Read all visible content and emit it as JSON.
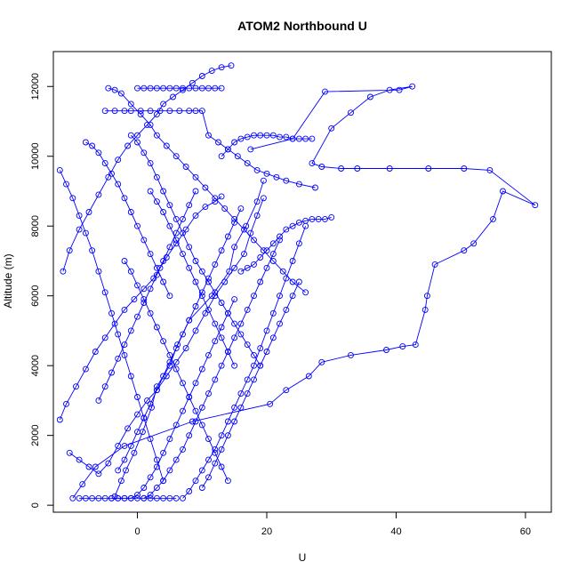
{
  "chart_data": {
    "type": "line",
    "title": "ATOM2 Northbound U",
    "xlabel": "U",
    "ylabel": "Altitude (m)",
    "xlim": [
      -13,
      64
    ],
    "ylim": [
      -200,
      13000
    ],
    "xticks": [
      0,
      20,
      40,
      60
    ],
    "yticks": [
      0,
      2000,
      4000,
      6000,
      8000,
      10000,
      12000
    ],
    "grid": false,
    "legend": "none",
    "color": "#0000ff",
    "marker": "open-circle",
    "series": [
      {
        "x": [
          -3.5,
          -2.5,
          -1.8,
          -0.5,
          0.8,
          2.2,
          3.0,
          5.0,
          6.2,
          8.0,
          11.5,
          14.2,
          15.0,
          16.8,
          18.5,
          19.5
        ],
        "y": [
          250,
          700,
          1000,
          1500,
          2100,
          2800,
          3400,
          4000,
          4600,
          5300,
          6000,
          6700,
          7400,
          8000,
          8700,
          9300
        ]
      },
      {
        "x": [
          -10.0,
          -8.5,
          -6.5,
          -2.0,
          8.5,
          20.5,
          23.0,
          26.5,
          28.5,
          33.0,
          38.5,
          41.0,
          43.0,
          44.5,
          44.8,
          46.0,
          50.5,
          52.0,
          55.0,
          56.5,
          61.5,
          54.5,
          50.5,
          45.0,
          39.0,
          34.0,
          31.5,
          28.5,
          27.0,
          30.0,
          33.0,
          36.0,
          39.0,
          42.5,
          40.5,
          29.0,
          24.0,
          17.5
        ],
        "y": [
          200,
          600,
          1100,
          1700,
          2400,
          2900,
          3300,
          3700,
          4100,
          4300,
          4450,
          4550,
          4600,
          5600,
          6000,
          6900,
          7300,
          7500,
          8200,
          9000,
          8600,
          9600,
          9650,
          9650,
          9650,
          9650,
          9650,
          9700,
          9800,
          10800,
          11250,
          11700,
          11900,
          12000,
          11900,
          11850,
          10500,
          10200
        ]
      },
      {
        "x": [
          -12.0,
          -11.0,
          -9.5,
          -8.0,
          -6.5,
          -5.0,
          -3.5,
          -2.0,
          -0.5,
          1.0,
          2.5,
          3.5,
          4.5,
          6.0,
          7.5,
          9.0,
          10.5,
          12.0,
          13.0
        ],
        "y": [
          2450,
          2900,
          3400,
          3900,
          4400,
          4800,
          5200,
          5600,
          5900,
          6200,
          6500,
          6800,
          7100,
          7500,
          7900,
          8300,
          8550,
          8700,
          8850
        ]
      },
      {
        "x": [
          -10.5,
          -9.0,
          -7.5,
          -6.0,
          -4.5,
          -3.0,
          -1.5,
          0.0,
          1.5,
          3.0,
          4.5,
          6.0,
          7.5,
          9.0,
          10.5,
          12.0,
          13.5,
          15.0,
          16.5,
          17.5,
          18.5,
          19.5
        ],
        "y": [
          1500,
          1300,
          1100,
          900,
          1200,
          1700,
          2200,
          2600,
          3000,
          3300,
          3700,
          4100,
          4500,
          5000,
          5500,
          6000,
          6400,
          6800,
          7200,
          7800,
          8300,
          8800
        ]
      },
      {
        "x": [
          -11.5,
          -10.5,
          -9.0,
          -7.5,
          -6.0,
          -4.5,
          -3.0,
          -1.5,
          0.0,
          1.5,
          3.0,
          4.0,
          5.5,
          7.0,
          8.5,
          10.0,
          11.5,
          13.0,
          14.5
        ],
        "y": [
          6700,
          7300,
          7900,
          8400,
          8900,
          9400,
          9900,
          10300,
          10600,
          10900,
          11200,
          11500,
          11700,
          11900,
          12100,
          12300,
          12450,
          12550,
          12600
        ]
      },
      {
        "x": [
          -5.0,
          -3.5,
          -2.0,
          -1.0,
          0.5,
          2.0,
          3.5,
          5.0,
          6.5,
          8.0,
          9.0,
          10.0,
          11.0,
          12.5,
          14.0,
          15.5,
          17.0,
          18.5,
          20.0,
          21.5,
          23.0,
          25.0,
          27.5
        ],
        "y": [
          11300,
          11300,
          11300,
          11300,
          11300,
          11300,
          11300,
          11300,
          11300,
          11300,
          11300,
          11300,
          10600,
          10400,
          10200,
          10000,
          9800,
          9600,
          9500,
          9400,
          9300,
          9200,
          9100
        ]
      },
      {
        "x": [
          -4.5,
          -3.5,
          -2.5,
          -1.0,
          0.5,
          2.0,
          3.0,
          4.5,
          6.0,
          7.5,
          9.0,
          10.5,
          12.0,
          13.5,
          15.0,
          16.5,
          18.0,
          19.5,
          21.0,
          22.5,
          24.0,
          26.0
        ],
        "y": [
          11950,
          11900,
          11800,
          11500,
          11200,
          10900,
          10600,
          10300,
          10000,
          9700,
          9400,
          9100,
          8800,
          8500,
          8200,
          7900,
          7600,
          7300,
          7000,
          6700,
          6400,
          6100
        ]
      },
      {
        "x": [
          -1.0,
          0.0,
          1.0,
          2.0,
          3.0,
          4.0,
          5.0,
          6.0,
          7.0,
          8.0,
          9.0,
          10.0,
          11.0,
          12.0,
          13.0,
          14.0,
          15.0,
          16.0,
          17.0,
          18.0,
          19.0
        ],
        "y": [
          10600,
          10400,
          10100,
          9800,
          9400,
          9000,
          8600,
          8200,
          7800,
          7400,
          7000,
          6700,
          6400,
          6100,
          5800,
          5500,
          5200,
          4900,
          4600,
          4300,
          4000
        ]
      },
      {
        "x": [
          -12.0,
          -11.0,
          -10.0,
          -9.0,
          -8.0,
          -7.0,
          -6.0,
          -5.0,
          -4.0,
          -3.0,
          -2.0,
          -1.0,
          0.0,
          1.0,
          2.0,
          3.0,
          4.0
        ],
        "y": [
          9600,
          9200,
          8800,
          8300,
          7800,
          7300,
          6700,
          6100,
          5500,
          4900,
          4300,
          3700,
          3100,
          2500,
          1900,
          1300,
          700
        ]
      },
      {
        "x": [
          -4.0,
          -3.0,
          -2.0,
          -1.0,
          0.0,
          1.0,
          2.0,
          3.0,
          4.0,
          5.0,
          6.0,
          7.0,
          8.0,
          9.0,
          10.0,
          11.0,
          12.0,
          13.0,
          14.0,
          15.0
        ],
        "y": [
          200,
          200,
          200,
          200,
          300,
          500,
          800,
          1100,
          1500,
          1900,
          2300,
          2700,
          3100,
          3500,
          3900,
          4300,
          4700,
          5100,
          5500,
          5900
        ]
      },
      {
        "x": [
          1.0,
          2.0,
          3.0,
          4.0,
          5.0,
          6.0,
          7.0,
          8.0,
          9.0,
          10.0,
          11.0,
          12.0,
          13.0,
          14.0,
          15.0,
          16.0,
          17.0,
          18.0,
          19.0,
          20.0,
          21.0,
          22.0
        ],
        "y": [
          200,
          300,
          500,
          700,
          1000,
          1300,
          1600,
          2000,
          2400,
          2800,
          3200,
          3600,
          4000,
          4400,
          4800,
          5200,
          5600,
          6000,
          6400,
          6800,
          7200,
          7600
        ]
      },
      {
        "x": [
          7.0,
          8.0,
          9.0,
          10.0,
          11.0,
          12.0,
          13.0,
          14.0,
          15.0,
          16.0,
          17.0,
          18.0,
          19.0,
          20.0,
          21.0,
          22.0,
          23.0,
          24.0,
          25.0,
          26.0
        ],
        "y": [
          200,
          400,
          700,
          1000,
          1300,
          1600,
          2000,
          2400,
          2800,
          3200,
          3600,
          4000,
          4500,
          5000,
          5500,
          6000,
          6500,
          7000,
          7500,
          8000
        ]
      },
      {
        "x": [
          -3.0,
          -2.0,
          -1.0,
          0.0,
          1.0,
          2.0,
          3.0,
          4.0,
          5.0,
          6.0,
          7.0,
          8.0,
          9.0,
          10.0,
          11.0,
          12.0,
          13.0,
          14.0,
          15.0,
          16.0
        ],
        "y": [
          1000,
          1300,
          1700,
          2100,
          2500,
          2900,
          3300,
          3700,
          4100,
          4500,
          4900,
          5300,
          5700,
          6100,
          6500,
          6900,
          7300,
          7700,
          8100,
          8500
        ]
      },
      {
        "x": [
          -6.0,
          -5.0,
          -4.0,
          -3.0,
          -2.0,
          -1.0,
          0.0,
          1.0,
          2.0,
          3.0,
          4.0,
          5.0,
          6.0,
          7.0,
          8.0,
          9.0
        ],
        "y": [
          3000,
          3400,
          3800,
          4200,
          4600,
          5000,
          5400,
          5800,
          6200,
          6600,
          7000,
          7400,
          7800,
          8200,
          8600,
          9000
        ]
      },
      {
        "x": [
          16.0,
          17.0,
          18.0,
          19.0,
          20.0,
          21.0,
          22.0,
          23.0,
          24.0,
          25.0,
          26.0,
          27.0,
          28.0,
          29.0,
          30.0
        ],
        "y": [
          6700,
          6800,
          6900,
          7100,
          7300,
          7500,
          7700,
          7900,
          8000,
          8100,
          8150,
          8200,
          8200,
          8200,
          8250
        ]
      },
      {
        "x": [
          13.0,
          14.0,
          15.0,
          16.0,
          17.0,
          18.0,
          19.0,
          20.0,
          21.0,
          22.0,
          23.0,
          24.0,
          25.0,
          26.0,
          27.0
        ],
        "y": [
          10000,
          10200,
          10400,
          10500,
          10550,
          10600,
          10600,
          10600,
          10600,
          10550,
          10550,
          10500,
          10500,
          10500,
          10500
        ]
      },
      {
        "x": [
          0.0,
          1.0,
          2.0,
          3.0,
          4.0,
          5.0,
          6.0,
          7.0,
          8.0,
          9.0,
          10.0,
          11.0,
          12.0,
          13.0
        ],
        "y": [
          11950,
          11950,
          11950,
          11950,
          11950,
          11950,
          11950,
          11950,
          11950,
          11950,
          11950,
          11950,
          11950,
          11950
        ]
      },
      {
        "x": [
          -8.0,
          -7.0,
          -6.0,
          -5.0,
          -4.0,
          -3.0,
          -2.0,
          -1.0,
          0.0,
          1.0,
          2.0,
          3.0,
          4.0,
          5.0
        ],
        "y": [
          10400,
          10300,
          10100,
          9800,
          9500,
          9200,
          8800,
          8400,
          8000,
          7600,
          7200,
          6800,
          6400,
          6000
        ]
      },
      {
        "x": [
          -9.0,
          -8.0,
          -7.0,
          -6.0,
          -5.0,
          -4.0,
          -3.0,
          -2.0,
          -1.0,
          0.0,
          1.0,
          2.0,
          3.0,
          4.0,
          5.0,
          6.0
        ],
        "y": [
          200,
          200,
          200,
          200,
          200,
          200,
          200,
          200,
          200,
          200,
          200,
          200,
          200,
          200,
          200,
          200
        ]
      },
      {
        "x": [
          10.0,
          11.0,
          12.0,
          13.0,
          14.0,
          15.0,
          16.0,
          17.0,
          18.0,
          19.0,
          20.0,
          21.0,
          22.0,
          23.0,
          24.0,
          25.0
        ],
        "y": [
          500,
          800,
          1200,
          1600,
          2000,
          2400,
          2800,
          3200,
          3600,
          4000,
          4400,
          4800,
          5200,
          5600,
          6000,
          6400
        ]
      },
      {
        "x": [
          2.0,
          3.0,
          4.0,
          5.0,
          6.0,
          7.0,
          8.0,
          9.0,
          10.0,
          11.0,
          12.0,
          13.0,
          14.0,
          15.0
        ],
        "y": [
          9000,
          8700,
          8400,
          8000,
          7600,
          7200,
          6800,
          6400,
          6000,
          5600,
          5200,
          4800,
          4400,
          4000
        ]
      },
      {
        "x": [
          -2.0,
          -1.0,
          0.0,
          1.0,
          2.0,
          3.0,
          4.0,
          5.0,
          6.0,
          7.0,
          8.0,
          9.0,
          10.0,
          11.0,
          12.0,
          13.0,
          14.0
        ],
        "y": [
          7000,
          6700,
          6300,
          5900,
          5500,
          5100,
          4700,
          4300,
          3900,
          3500,
          3100,
          2700,
          2300,
          1900,
          1500,
          1100,
          700
        ]
      }
    ]
  }
}
